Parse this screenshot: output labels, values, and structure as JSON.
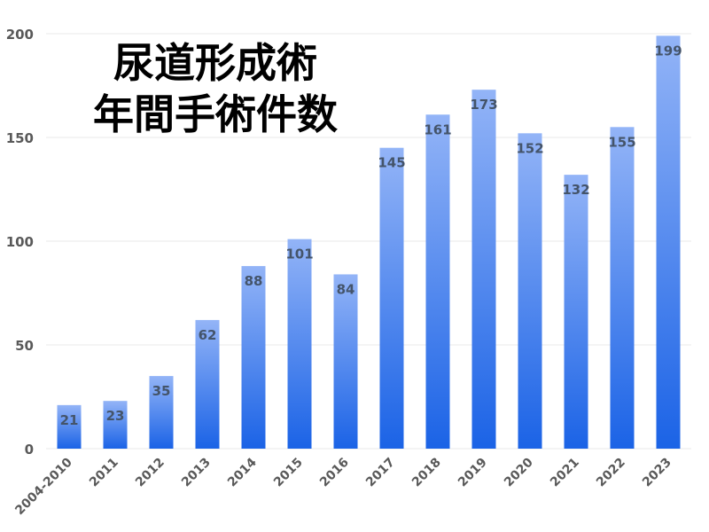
{
  "chart_data": {
    "type": "bar",
    "title_lines": [
      "尿道形成術",
      "年間手術件数"
    ],
    "xlabel": "",
    "ylabel": "",
    "categories": [
      "2004-2010",
      "2011",
      "2012",
      "2013",
      "2014",
      "2015",
      "2016",
      "2017",
      "2018",
      "2019",
      "2020",
      "2021",
      "2022",
      "2023"
    ],
    "values": [
      21,
      23,
      35,
      62,
      88,
      101,
      84,
      145,
      161,
      173,
      152,
      132,
      155,
      199
    ],
    "ylim": [
      0,
      200
    ],
    "yticks": [
      0,
      50,
      100,
      150,
      200
    ],
    "grid": true,
    "legend": "none",
    "data_labels": true,
    "colors": {
      "bar_top": "#93b4f7",
      "bar_bottom": "#1b63e6",
      "label": "#44546a",
      "tick": "#595959",
      "grid": "#e8e8e8"
    }
  }
}
